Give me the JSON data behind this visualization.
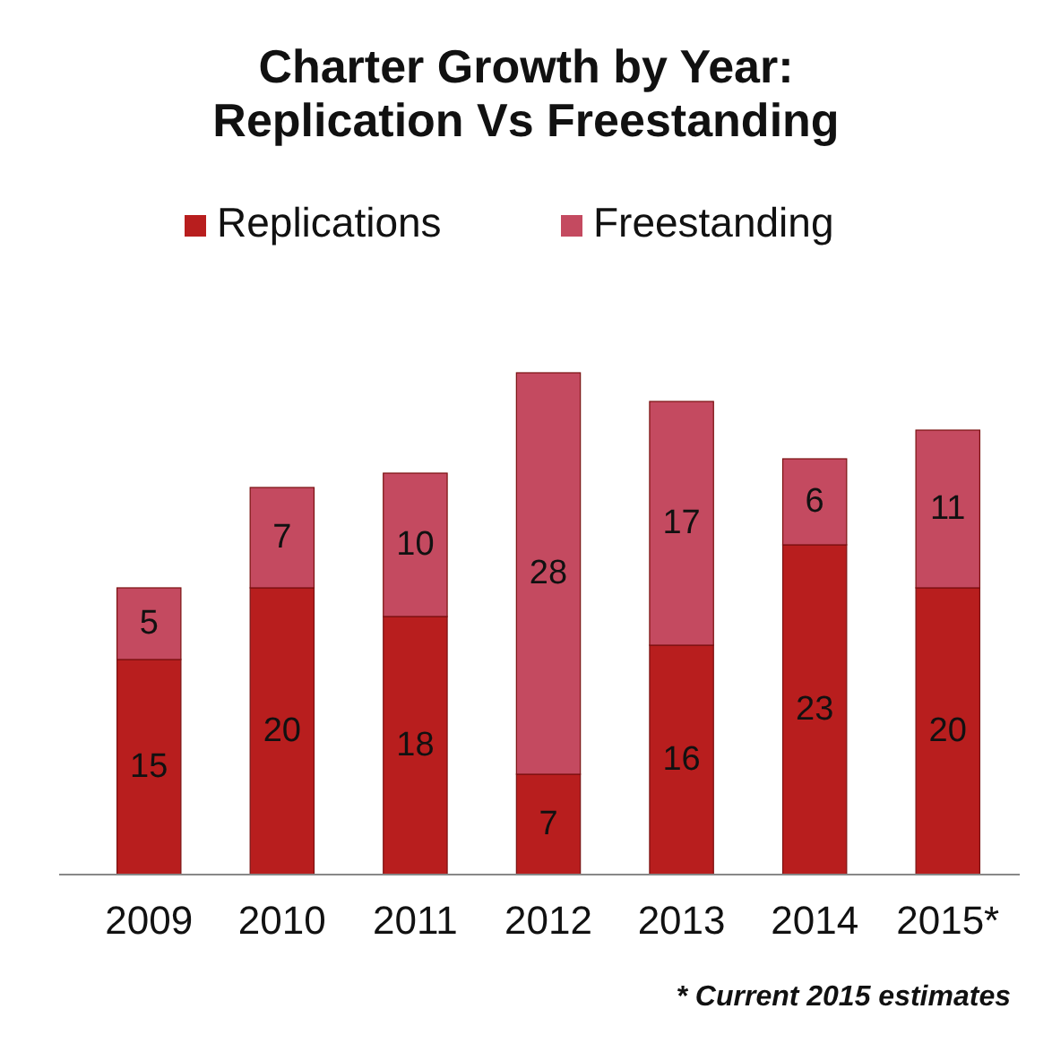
{
  "chart_data": {
    "type": "bar",
    "title": "Charter Growth by Year:\nReplication Vs Freestanding",
    "categories": [
      "2009",
      "2010",
      "2011",
      "2012",
      "2013",
      "2014",
      "2015*"
    ],
    "stacked": true,
    "data_labels": true,
    "legend": "top",
    "series": [
      {
        "name": "Replications",
        "color": "#b81e1e",
        "values": [
          15,
          20,
          18,
          7,
          16,
          23,
          20
        ]
      },
      {
        "name": "Freestanding",
        "color": "#c44a60",
        "values": [
          5,
          7,
          10,
          28,
          17,
          6,
          11
        ]
      }
    ],
    "annotations": [
      "* Current 2015 estimates"
    ]
  }
}
